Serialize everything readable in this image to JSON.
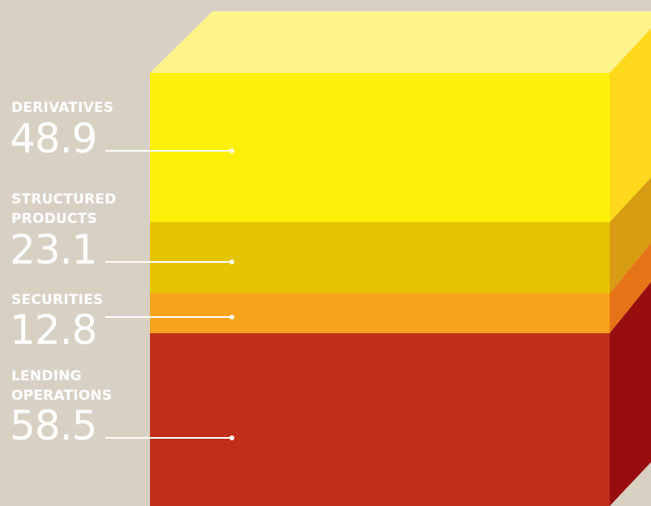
{
  "chart_data": {
    "type": "bar",
    "categories": [
      "DERIVATIVES",
      "STRUCTURED PRODUCTS",
      "SECURITIES",
      "LENDING OPERATIONS"
    ],
    "values": [
      48.9,
      23.1,
      12.8,
      58.5
    ],
    "series": [
      {
        "values": [
          48.9,
          23.1,
          12.8,
          58.5
        ],
        "colors": {
          "front": [
            "#fff009",
            "#e5c300",
            "#f7a41c",
            "#bf2f1a"
          ],
          "side": [
            "#ffd91c",
            "#d89c12",
            "#e57318",
            "#980e0e"
          ],
          "top": "#fff38c"
        }
      }
    ],
    "stacked": true,
    "legend": "left",
    "grid": false
  },
  "labels": [
    {
      "lines": [
        "DERIVATIVES"
      ],
      "value": "48.9"
    },
    {
      "lines": [
        "STRUCTURED",
        "PRODUCTS"
      ],
      "value": "23.1"
    },
    {
      "lines": [
        "SECURITIES"
      ],
      "value": "12.8"
    },
    {
      "lines": [
        "LENDING",
        "OPERATIONS"
      ],
      "value": "58.5"
    }
  ]
}
